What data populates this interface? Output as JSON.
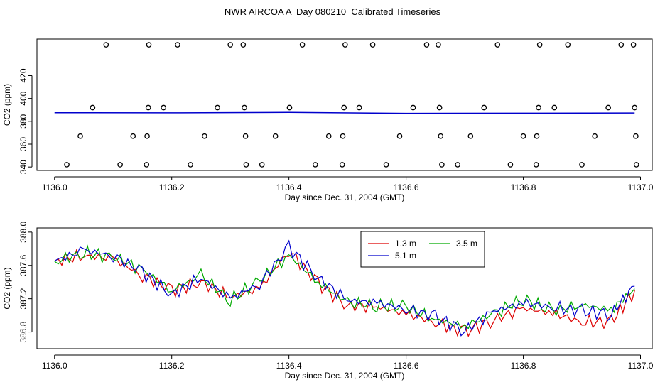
{
  "title": "NWR AIRCOA A  Day 080210  Calibrated Timeseries",
  "chart_data": [
    {
      "type": "scatter",
      "xlabel": "Day since Dec. 31, 2004 (GMT)",
      "ylabel": "CO2 (ppm)",
      "xlim": [
        1135.97,
        1137.02
      ],
      "ylim": [
        337,
        452
      ],
      "x_ticks": [
        1136.0,
        1136.2,
        1136.4,
        1136.6,
        1136.8,
        1137.0
      ],
      "x_tick_labels": [
        "1136.0",
        "1136.2",
        "1136.4",
        "1136.6",
        "1136.8",
        "1137.0"
      ],
      "y_ticks": [
        340,
        360,
        380,
        400,
        420
      ],
      "y_tick_labels": [
        "340",
        "360",
        "380",
        "400",
        "420"
      ],
      "grid": false,
      "series": [
        {
          "marker": "open-circle",
          "color": "#000000",
          "points": [
            [
              1136.021,
              342
            ],
            [
              1136.044,
              367
            ],
            [
              1136.065,
              392
            ],
            [
              1136.088,
              447
            ],
            [
              1136.112,
              342
            ],
            [
              1136.134,
              367
            ],
            [
              1136.157,
              342
            ],
            [
              1136.158,
              367
            ],
            [
              1136.16,
              392
            ],
            [
              1136.161,
              447
            ],
            [
              1136.186,
              392
            ],
            [
              1136.21,
              447
            ],
            [
              1136.232,
              342
            ],
            [
              1136.256,
              367
            ],
            [
              1136.278,
              392
            ],
            [
              1136.3,
              447
            ],
            [
              1136.322,
              447
            ],
            [
              1136.324,
              392
            ],
            [
              1136.326,
              367
            ],
            [
              1136.327,
              342
            ],
            [
              1136.354,
              342
            ],
            [
              1136.377,
              367
            ],
            [
              1136.401,
              392
            ],
            [
              1136.423,
              447
            ],
            [
              1136.445,
              342
            ],
            [
              1136.468,
              367
            ],
            [
              1136.491,
              342
            ],
            [
              1136.492,
              367
            ],
            [
              1136.494,
              392
            ],
            [
              1136.496,
              447
            ],
            [
              1136.52,
              392
            ],
            [
              1136.543,
              447
            ],
            [
              1136.566,
              342
            ],
            [
              1136.589,
              367
            ],
            [
              1136.612,
              392
            ],
            [
              1136.635,
              447
            ],
            [
              1136.655,
              447
            ],
            [
              1136.657,
              392
            ],
            [
              1136.659,
              367
            ],
            [
              1136.661,
              342
            ],
            [
              1136.688,
              342
            ],
            [
              1136.71,
              367
            ],
            [
              1136.733,
              392
            ],
            [
              1136.756,
              447
            ],
            [
              1136.778,
              342
            ],
            [
              1136.8,
              367
            ],
            [
              1136.822,
              342
            ],
            [
              1136.823,
              367
            ],
            [
              1136.826,
              392
            ],
            [
              1136.828,
              447
            ],
            [
              1136.853,
              392
            ],
            [
              1136.876,
              447
            ],
            [
              1136.9,
              342
            ],
            [
              1136.922,
              367
            ],
            [
              1136.945,
              392
            ],
            [
              1136.967,
              447
            ],
            [
              1136.988,
              447
            ],
            [
              1136.99,
              392
            ],
            [
              1136.992,
              367
            ],
            [
              1136.993,
              342
            ]
          ]
        },
        {
          "marker": "line",
          "color": "#0000cc",
          "x": [
            1136.0,
            1136.2,
            1136.4,
            1136.6,
            1136.8,
            1136.99
          ],
          "values": [
            387.5,
            387.4,
            387.8,
            387.0,
            387.1,
            387.3
          ]
        }
      ]
    },
    {
      "type": "line",
      "xlabel": "Day since Dec. 31, 2004 (GMT)",
      "ylabel": "CO2 (ppm)",
      "xlim": [
        1135.97,
        1137.02
      ],
      "ylim": [
        386.6,
        388.05
      ],
      "x_ticks": [
        1136.0,
        1136.2,
        1136.4,
        1136.6,
        1136.8,
        1137.0
      ],
      "x_tick_labels": [
        "1136.0",
        "1136.2",
        "1136.4",
        "1136.6",
        "1136.8",
        "1137.0"
      ],
      "y_ticks": [
        386.8,
        387.2,
        387.6,
        388.0
      ],
      "y_tick_labels": [
        "386.8",
        "387.2",
        "387.6",
        "388.0"
      ],
      "grid": false,
      "legend": {
        "placement": "top-center"
      },
      "x": [
        1136.0,
        1136.05,
        1136.1,
        1136.15,
        1136.2,
        1136.25,
        1136.3,
        1136.35,
        1136.4,
        1136.45,
        1136.5,
        1136.55,
        1136.6,
        1136.65,
        1136.7,
        1136.75,
        1136.8,
        1136.85,
        1136.9,
        1136.95,
        1136.99
      ],
      "series": [
        {
          "name": "1.3 m",
          "color": "#dd0000",
          "values": [
            387.65,
            387.72,
            387.68,
            387.48,
            387.3,
            387.4,
            387.22,
            387.32,
            387.78,
            387.38,
            387.12,
            387.1,
            387.02,
            386.92,
            386.8,
            386.95,
            387.08,
            387.03,
            386.92,
            386.92,
            387.3
          ]
        },
        {
          "name": "3.5 m",
          "color": "#00aa00",
          "values": [
            387.65,
            387.75,
            387.7,
            387.55,
            387.3,
            387.48,
            387.18,
            387.42,
            387.72,
            387.4,
            387.15,
            387.12,
            387.1,
            386.95,
            386.87,
            387.02,
            387.2,
            387.05,
            387.13,
            387.06,
            387.32
          ]
        },
        {
          "name": "5.1 m",
          "color": "#0000cc",
          "values": [
            387.65,
            387.78,
            387.72,
            387.52,
            387.25,
            387.45,
            387.2,
            387.38,
            387.82,
            387.45,
            387.18,
            387.15,
            387.08,
            386.98,
            386.82,
            387.05,
            387.15,
            387.1,
            387.05,
            387.02,
            387.35
          ]
        }
      ]
    }
  ]
}
